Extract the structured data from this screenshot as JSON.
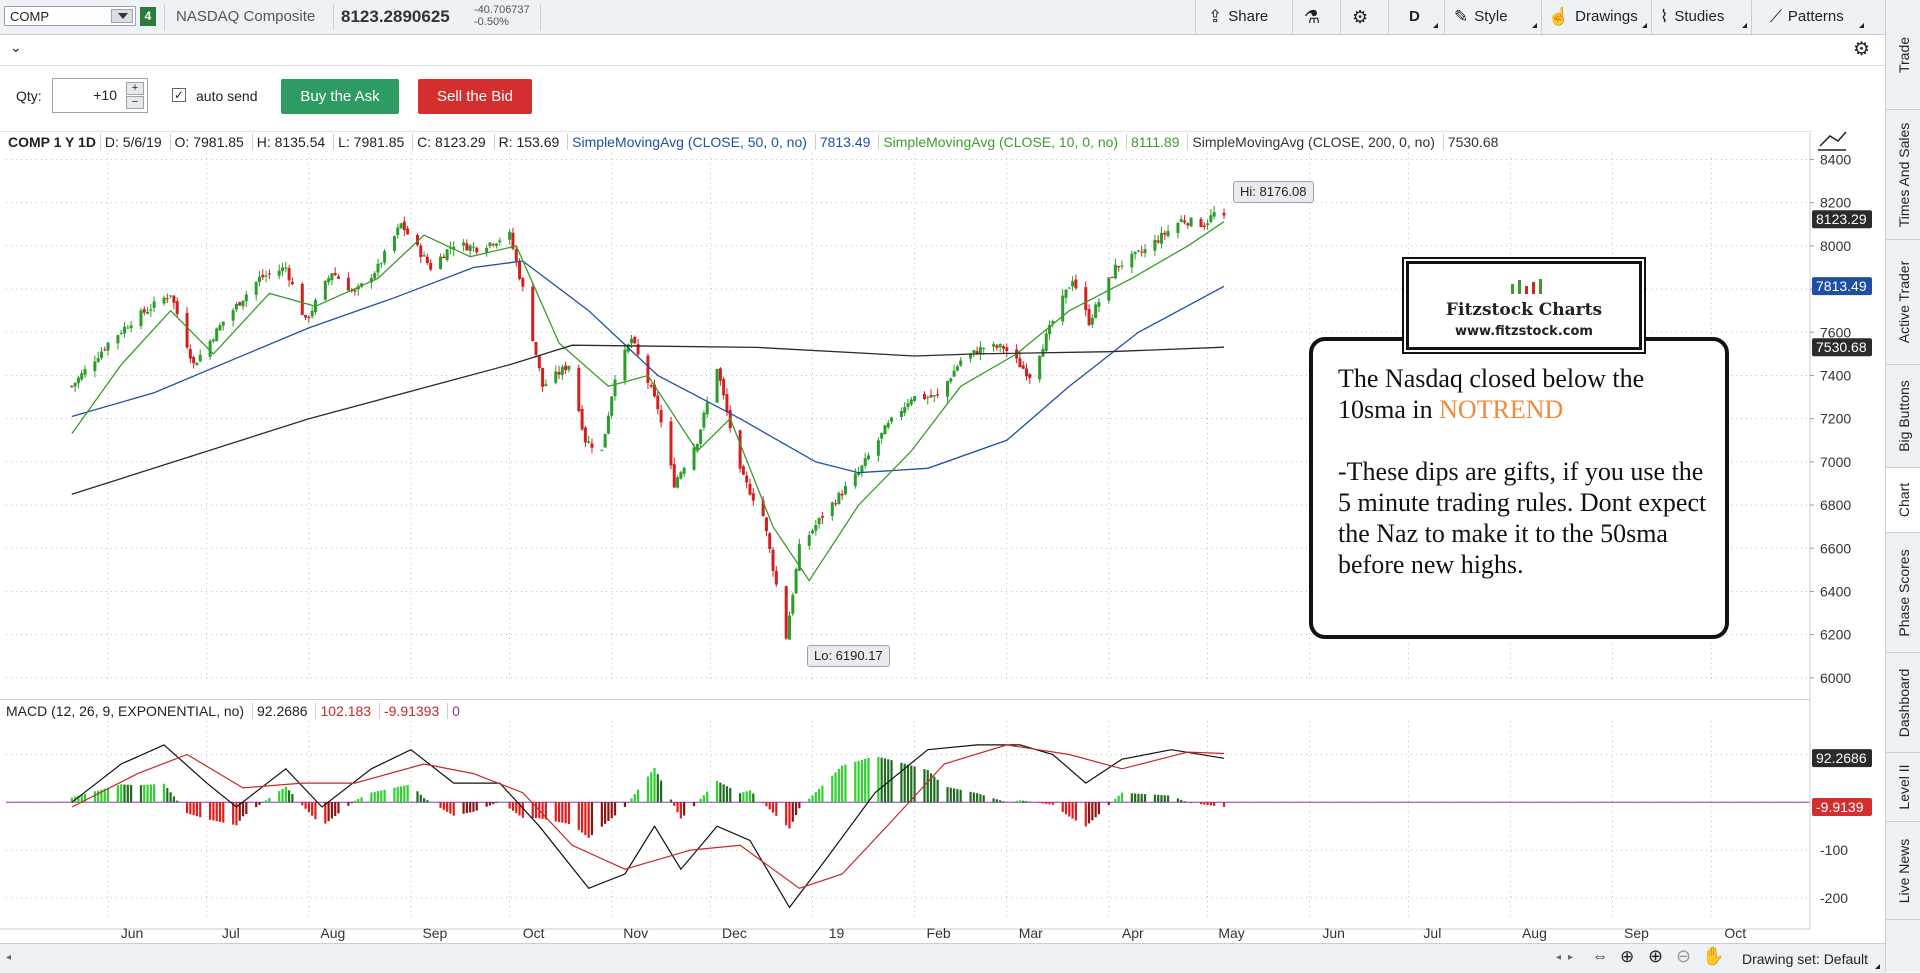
{
  "toolbar": {
    "symbol": "COMP",
    "link_badge": "4",
    "description": "NASDAQ Composite",
    "last": "8123.2890625",
    "change": "-40.706737",
    "change_pct": "-0.50%",
    "share": "Share",
    "aggregation": "D",
    "style": "Style",
    "drawings": "Drawings",
    "studies": "Studies",
    "patterns": "Patterns"
  },
  "order": {
    "qty_label": "Qty:",
    "qty_value": "+10",
    "auto_send": "auto send",
    "buy": "Buy the Ask",
    "sell": "Sell the Bid"
  },
  "legend": {
    "symbol": "COMP 1 Y 1D",
    "date": "D: 5/6/19",
    "open": "O: 7981.85",
    "high": "H: 8135.54",
    "low": "L: 7981.85",
    "close": "C: 8123.29",
    "range": "R: 153.69",
    "sma50_name": "SimpleMovingAvg (CLOSE, 50, 0, no)",
    "sma50_val": "7813.49",
    "sma10_name": "SimpleMovingAvg (CLOSE, 10, 0, no)",
    "sma10_val": "8111.89",
    "sma200_name": "SimpleMovingAvg (CLOSE, 200, 0, no)",
    "sma200_val": "7530.68"
  },
  "macd_legend": {
    "name": "MACD (12, 26, 9, EXPONENTIAL, no)",
    "value": "92.2686",
    "avg": "102.183",
    "diff": "-9.91393",
    "zero": "0"
  },
  "right_tabs": [
    "Trade",
    "Times And Sales",
    "Active Trader",
    "Big Buttons",
    "Chart",
    "Phase Scores",
    "Dashboard",
    "Level II",
    "Live News"
  ],
  "bottom": {
    "drawing_set": "Drawing set: Default"
  },
  "annotation": {
    "logo_title": "Fitzstock Charts",
    "logo_url": "www.fitzstock.com",
    "line1": "The Nasdaq closed below the 10sma in ",
    "highlight": "NOTREND",
    "line2": "-These dips are gifts, if you use the 5 minute trading rules. Dont expect the Naz to make it to the 50sma before new highs."
  },
  "chart_data": [
    {
      "type": "candlestick",
      "title": "COMP 1 Y 1D",
      "x_ticks": [
        "Jun",
        "Jul",
        "Aug",
        "Sep",
        "Oct",
        "Nov",
        "Dec",
        "19",
        "Feb",
        "Mar",
        "Apr",
        "May",
        "Jun",
        "Jul",
        "Aug",
        "Sep",
        "Oct"
      ],
      "y_ticks": [
        6000,
        6200,
        6400,
        6600,
        6800,
        7000,
        7200,
        7400,
        7600,
        7800,
        8000,
        8200,
        8400
      ],
      "ylim": [
        5990,
        8430
      ],
      "grid": true,
      "high_label": "Hi: 8176.08",
      "low_label": "Lo: 6190.17",
      "price_marks": [
        {
          "label": "8123.29",
          "value": 8123.29,
          "color": "#2b2b2b"
        },
        {
          "label": "7813.49",
          "value": 7813.49,
          "color": "#1f4fa3"
        },
        {
          "label": "7530.68",
          "value": 7530.68,
          "color": "#2b2b2b"
        }
      ],
      "close_path": [
        [
          "2018-05-21",
          7350
        ],
        [
          "2018-06-01",
          7550
        ],
        [
          "2018-06-08",
          7650
        ],
        [
          "2018-06-20",
          7780
        ],
        [
          "2018-06-27",
          7450
        ],
        [
          "2018-07-06",
          7650
        ],
        [
          "2018-07-17",
          7850
        ],
        [
          "2018-07-25",
          7900
        ],
        [
          "2018-07-31",
          7650
        ],
        [
          "2018-08-08",
          7880
        ],
        [
          "2018-08-15",
          7780
        ],
        [
          "2018-08-22",
          7900
        ],
        [
          "2018-08-29",
          8100
        ],
        [
          "2018-09-07",
          7900
        ],
        [
          "2018-09-14",
          8010
        ],
        [
          "2018-09-21",
          7990
        ],
        [
          "2018-10-01",
          8050
        ],
        [
          "2018-10-05",
          7800
        ],
        [
          "2018-10-11",
          7350
        ],
        [
          "2018-10-19",
          7450
        ],
        [
          "2018-10-24",
          7100
        ],
        [
          "2018-10-29",
          7050
        ],
        [
          "2018-11-02",
          7400
        ],
        [
          "2018-11-07",
          7570
        ],
        [
          "2018-11-15",
          7250
        ],
        [
          "2018-11-20",
          6900
        ],
        [
          "2018-11-27",
          7100
        ],
        [
          "2018-12-03",
          7440
        ],
        [
          "2018-12-10",
          6950
        ],
        [
          "2018-12-17",
          6750
        ],
        [
          "2018-12-24",
          6190
        ],
        [
          "2018-12-28",
          6600
        ],
        [
          "2019-01-04",
          6750
        ],
        [
          "2019-01-15",
          6950
        ],
        [
          "2019-01-23",
          7150
        ],
        [
          "2019-01-31",
          7300
        ],
        [
          "2019-02-08",
          7300
        ],
        [
          "2019-02-15",
          7470
        ],
        [
          "2019-02-22",
          7530
        ],
        [
          "2019-02-28",
          7530
        ],
        [
          "2019-03-08",
          7400
        ],
        [
          "2019-03-15",
          7650
        ],
        [
          "2019-03-21",
          7850
        ],
        [
          "2019-03-26",
          7650
        ],
        [
          "2019-04-03",
          7900
        ],
        [
          "2019-04-12",
          7980
        ],
        [
          "2019-04-23",
          8120
        ],
        [
          "2019-04-30",
          8100
        ],
        [
          "2019-05-03",
          8150
        ],
        [
          "2019-05-06",
          8123
        ]
      ],
      "series": [
        {
          "name": "SimpleMovingAvg (CLOSE, 50, 0, no)",
          "color": "#1f4fa3",
          "points": [
            [
              "2018-05-21",
              7210
            ],
            [
              "2018-06-15",
              7320
            ],
            [
              "2018-07-10",
              7480
            ],
            [
              "2018-08-01",
              7620
            ],
            [
              "2018-08-27",
              7760
            ],
            [
              "2018-09-20",
              7900
            ],
            [
              "2018-10-05",
              7930
            ],
            [
              "2018-10-25",
              7700
            ],
            [
              "2018-11-15",
              7400
            ],
            [
              "2018-12-10",
              7200
            ],
            [
              "2019-01-02",
              7000
            ],
            [
              "2019-01-15",
              6950
            ],
            [
              "2019-02-05",
              6970
            ],
            [
              "2019-03-01",
              7100
            ],
            [
              "2019-03-20",
              7350
            ],
            [
              "2019-04-10",
              7600
            ],
            [
              "2019-05-06",
              7813
            ]
          ]
        },
        {
          "name": "SimpleMovingAvg (CLOSE, 10, 0, no)",
          "color": "#3b9b2c",
          "points": [
            [
              "2018-05-21",
              7130
            ],
            [
              "2018-06-05",
              7450
            ],
            [
              "2018-06-20",
              7700
            ],
            [
              "2018-07-03",
              7500
            ],
            [
              "2018-07-20",
              7780
            ],
            [
              "2018-08-03",
              7720
            ],
            [
              "2018-08-22",
              7850
            ],
            [
              "2018-09-05",
              8050
            ],
            [
              "2018-09-19",
              7950
            ],
            [
              "2018-10-03",
              8000
            ],
            [
              "2018-10-16",
              7550
            ],
            [
              "2018-10-31",
              7350
            ],
            [
              "2018-11-12",
              7400
            ],
            [
              "2018-11-27",
              7050
            ],
            [
              "2018-12-07",
              7200
            ],
            [
              "2018-12-20",
              6700
            ],
            [
              "2018-12-31",
              6450
            ],
            [
              "2019-01-15",
              6800
            ],
            [
              "2019-01-31",
              7050
            ],
            [
              "2019-02-15",
              7350
            ],
            [
              "2019-03-04",
              7500
            ],
            [
              "2019-03-20",
              7700
            ],
            [
              "2019-04-08",
              7850
            ],
            [
              "2019-04-25",
              8000
            ],
            [
              "2019-05-06",
              8112
            ]
          ]
        },
        {
          "name": "SimpleMovingAvg (CLOSE, 200, 0, no)",
          "color": "#2b2b2b",
          "points": [
            [
              "2018-05-21",
              6850
            ],
            [
              "2018-08-01",
              7200
            ],
            [
              "2018-10-01",
              7450
            ],
            [
              "2018-10-20",
              7540
            ],
            [
              "2018-12-15",
              7530
            ],
            [
              "2019-02-01",
              7490
            ],
            [
              "2019-02-20",
              7500
            ],
            [
              "2019-04-01",
              7510
            ],
            [
              "2019-05-06",
              7531
            ]
          ]
        }
      ]
    },
    {
      "type": "line",
      "title": "MACD (12, 26, 9, EXPONENTIAL, no)",
      "y_ticks": [
        -200,
        -100,
        0,
        100
      ],
      "ylim": [
        -240,
        170
      ],
      "grid": true,
      "value_marks": [
        {
          "label": "92.2686",
          "value": 92.27,
          "color": "#2b2b2b"
        },
        {
          "label": "-9.9139",
          "value": -9.91,
          "color": "#d32f2f"
        }
      ],
      "series": [
        {
          "name": "Value",
          "color": "#111111",
          "points": [
            [
              "2018-05-21",
              0
            ],
            [
              "2018-06-05",
              80
            ],
            [
              "2018-06-18",
              120
            ],
            [
              "2018-07-01",
              40
            ],
            [
              "2018-07-10",
              -10
            ],
            [
              "2018-07-25",
              70
            ],
            [
              "2018-08-05",
              -10
            ],
            [
              "2018-08-20",
              70
            ],
            [
              "2018-09-01",
              110
            ],
            [
              "2018-09-14",
              40
            ],
            [
              "2018-09-28",
              40
            ],
            [
              "2018-10-10",
              -50
            ],
            [
              "2018-10-25",
              -180
            ],
            [
              "2018-11-05",
              -150
            ],
            [
              "2018-11-14",
              -50
            ],
            [
              "2018-11-22",
              -140
            ],
            [
              "2018-12-03",
              -50
            ],
            [
              "2018-12-13",
              -80
            ],
            [
              "2018-12-25",
              -220
            ],
            [
              "2019-01-05",
              -120
            ],
            [
              "2019-01-20",
              20
            ],
            [
              "2019-02-05",
              110
            ],
            [
              "2019-02-20",
              120
            ],
            [
              "2019-03-05",
              120
            ],
            [
              "2019-03-15",
              100
            ],
            [
              "2019-03-25",
              40
            ],
            [
              "2019-04-05",
              90
            ],
            [
              "2019-04-20",
              110
            ],
            [
              "2019-05-06",
              92
            ]
          ]
        },
        {
          "name": "Avg",
          "color": "#c62828",
          "points": [
            [
              "2018-05-21",
              -10
            ],
            [
              "2018-06-10",
              60
            ],
            [
              "2018-06-25",
              100
            ],
            [
              "2018-07-12",
              30
            ],
            [
              "2018-07-30",
              40
            ],
            [
              "2018-08-15",
              40
            ],
            [
              "2018-09-05",
              80
            ],
            [
              "2018-09-20",
              60
            ],
            [
              "2018-10-05",
              20
            ],
            [
              "2018-10-20",
              -90
            ],
            [
              "2018-11-05",
              -140
            ],
            [
              "2018-11-25",
              -100
            ],
            [
              "2018-12-10",
              -90
            ],
            [
              "2018-12-28",
              -180
            ],
            [
              "2019-01-10",
              -150
            ],
            [
              "2019-01-25",
              -40
            ],
            [
              "2019-02-10",
              80
            ],
            [
              "2019-03-01",
              120
            ],
            [
              "2019-03-20",
              100
            ],
            [
              "2019-04-05",
              70
            ],
            [
              "2019-04-25",
              105
            ],
            [
              "2019-05-06",
              102
            ]
          ]
        }
      ]
    }
  ]
}
